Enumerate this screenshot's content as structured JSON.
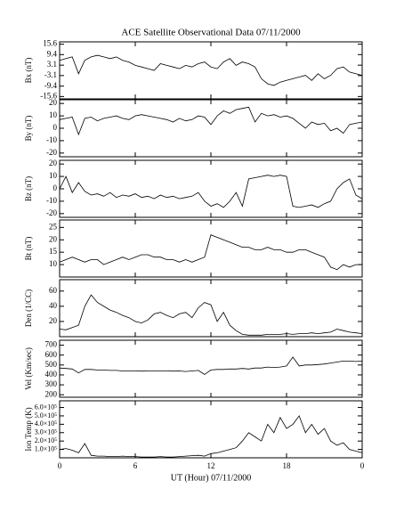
{
  "chart_data": [
    {
      "type": "line",
      "title": "ACE Satellite Observational Data   07/11/2000",
      "ylabel": "Bx (nT)",
      "color": "#000000",
      "x": [
        0,
        0.5,
        1,
        1.5,
        2,
        2.5,
        3,
        3.5,
        4,
        4.5,
        5,
        5.5,
        6,
        6.5,
        7,
        7.5,
        8,
        8.5,
        9,
        9.5,
        10,
        10.5,
        11,
        11.5,
        12,
        12.5,
        13,
        13.5,
        14,
        14.5,
        15,
        15.5,
        16,
        16.5,
        17,
        17.5,
        18,
        18.5,
        19,
        19.5,
        20,
        20.5,
        21,
        21.5,
        22,
        22.5,
        23,
        23.5,
        24
      ],
      "values": [
        6,
        7,
        8,
        -2,
        6,
        8,
        9,
        8,
        7,
        8,
        6,
        5,
        3,
        2,
        1,
        0,
        4,
        3,
        2,
        1,
        3,
        2,
        4,
        5,
        2,
        1,
        5,
        7,
        3,
        5,
        4,
        2,
        -5,
        -8,
        -9,
        -7,
        -6,
        -5,
        -4,
        -3,
        -6,
        -2,
        -5,
        -3,
        1,
        2,
        -1,
        -2,
        -3
      ],
      "xlim": [
        0,
        24
      ],
      "ylim": [
        -17,
        17
      ],
      "yticks": [
        15.6,
        9.4,
        3.1,
        -3.1,
        -9.4,
        -15.6
      ]
    },
    {
      "type": "line",
      "ylabel": "By (nT)",
      "color": "#000000",
      "x": [
        0,
        0.5,
        1,
        1.5,
        2,
        2.5,
        3,
        3.5,
        4,
        4.5,
        5,
        5.5,
        6,
        6.5,
        7,
        7.5,
        8,
        8.5,
        9,
        9.5,
        10,
        10.5,
        11,
        11.5,
        12,
        12.5,
        13,
        13.5,
        14,
        14.5,
        15,
        15.5,
        16,
        16.5,
        17,
        17.5,
        18,
        18.5,
        19,
        19.5,
        20,
        20.5,
        21,
        21.5,
        22,
        22.5,
        23,
        23.5,
        24
      ],
      "values": [
        7,
        8,
        9,
        -5,
        8,
        9,
        6,
        8,
        9,
        10,
        8,
        7,
        10,
        11,
        10,
        9,
        8,
        7,
        5,
        8,
        6,
        7,
        10,
        9,
        3,
        10,
        14,
        12,
        15,
        16,
        17,
        5,
        12,
        10,
        11,
        9,
        10,
        8,
        4,
        0,
        5,
        3,
        4,
        -2,
        0,
        -4,
        3,
        4,
        5
      ],
      "xlim": [
        0,
        24
      ],
      "ylim": [
        -23,
        23
      ],
      "yticks": [
        20,
        10,
        0,
        -10,
        -20
      ]
    },
    {
      "type": "line",
      "ylabel": "Bz (nT)",
      "color": "#000000",
      "x": [
        0,
        0.5,
        1,
        1.5,
        2,
        2.5,
        3,
        3.5,
        4,
        4.5,
        5,
        5.5,
        6,
        6.5,
        7,
        7.5,
        8,
        8.5,
        9,
        9.5,
        10,
        10.5,
        11,
        11.5,
        12,
        12.5,
        13,
        13.5,
        14,
        14.5,
        15,
        15.5,
        16,
        16.5,
        17,
        17.5,
        18,
        18.5,
        19,
        19.5,
        20,
        20.5,
        21,
        21.5,
        22,
        22.5,
        23,
        23.5,
        24
      ],
      "values": [
        0,
        10,
        -3,
        5,
        -2,
        -5,
        -4,
        -6,
        -3,
        -7,
        -5,
        -6,
        -4,
        -7,
        -6,
        -8,
        -5,
        -7,
        -6,
        -8,
        -7,
        -6,
        -3,
        -10,
        -14,
        -12,
        -15,
        -10,
        -3,
        -14,
        8,
        9,
        10,
        11,
        10,
        11,
        10,
        -14,
        -15,
        -14,
        -13,
        -15,
        -12,
        -10,
        0,
        5,
        8,
        -5,
        -8
      ],
      "xlim": [
        0,
        24
      ],
      "ylim": [
        -23,
        23
      ],
      "yticks": [
        20,
        10,
        0,
        -10,
        -20
      ]
    },
    {
      "type": "line",
      "ylabel": "Bt (nT)",
      "color": "#000000",
      "x": [
        0,
        0.5,
        1,
        1.5,
        2,
        2.5,
        3,
        3.5,
        4,
        4.5,
        5,
        5.5,
        6,
        6.5,
        7,
        7.5,
        8,
        8.5,
        9,
        9.5,
        10,
        10.5,
        11,
        11.5,
        12,
        12.5,
        13,
        13.5,
        14,
        14.5,
        15,
        15.5,
        16,
        16.5,
        17,
        17.5,
        18,
        18.5,
        19,
        19.5,
        20,
        20.5,
        21,
        21.5,
        22,
        22.5,
        23,
        23.5,
        24
      ],
      "values": [
        11,
        12,
        13,
        12,
        11,
        12,
        12,
        10,
        11,
        12,
        13,
        12,
        13,
        14,
        14,
        13,
        13,
        12,
        12,
        11,
        12,
        11,
        12,
        13,
        22,
        21,
        20,
        19,
        18,
        17,
        17,
        16,
        16,
        17,
        16,
        16,
        15,
        15,
        16,
        16,
        15,
        14,
        13,
        9,
        8,
        10,
        9,
        10,
        10
      ],
      "xlim": [
        0,
        24
      ],
      "ylim": [
        5,
        28
      ],
      "yticks": [
        25,
        20,
        15,
        10
      ]
    },
    {
      "type": "line",
      "ylabel": "Den (1/CC)",
      "color": "#000000",
      "x": [
        0,
        0.5,
        1,
        1.5,
        2,
        2.5,
        3,
        3.5,
        4,
        4.5,
        5,
        5.5,
        6,
        6.5,
        7,
        7.5,
        8,
        8.5,
        9,
        9.5,
        10,
        10.5,
        11,
        11.5,
        12,
        12.5,
        13,
        13.5,
        14,
        14.5,
        15,
        15.5,
        16,
        16.5,
        17,
        17.5,
        18,
        18.5,
        19,
        19.5,
        20,
        20.5,
        21,
        21.5,
        22,
        22.5,
        23,
        23.5,
        24
      ],
      "values": [
        10,
        9,
        12,
        15,
        40,
        55,
        45,
        40,
        35,
        32,
        28,
        25,
        20,
        18,
        22,
        30,
        32,
        28,
        25,
        30,
        32,
        25,
        38,
        45,
        42,
        20,
        32,
        15,
        8,
        3,
        2,
        2,
        2,
        3,
        3,
        3,
        4,
        3,
        4,
        4,
        5,
        4,
        5,
        6,
        10,
        8,
        6,
        5,
        4
      ],
      "xlim": [
        0,
        24
      ],
      "ylim": [
        0,
        75
      ],
      "yticks": [
        60,
        40,
        20
      ]
    },
    {
      "type": "line",
      "ylabel": "Vel (Km/sec)",
      "color": "#000000",
      "x": [
        0,
        0.5,
        1,
        1.5,
        2,
        2.5,
        3,
        3.5,
        4,
        4.5,
        5,
        5.5,
        6,
        6.5,
        7,
        7.5,
        8,
        8.5,
        9,
        9.5,
        10,
        10.5,
        11,
        11.5,
        12,
        12.5,
        13,
        13.5,
        14,
        14.5,
        15,
        15.5,
        16,
        16.5,
        17,
        17.5,
        18,
        18.5,
        19,
        19.5,
        20,
        20.5,
        21,
        21.5,
        22,
        22.5,
        23,
        23.5,
        24
      ],
      "values": [
        470,
        465,
        460,
        420,
        455,
        455,
        450,
        450,
        445,
        445,
        440,
        440,
        440,
        438,
        440,
        440,
        440,
        440,
        438,
        440,
        435,
        440,
        445,
        405,
        450,
        455,
        455,
        460,
        460,
        465,
        460,
        470,
        470,
        480,
        475,
        480,
        490,
        580,
        490,
        500,
        500,
        505,
        510,
        520,
        530,
        540,
        540,
        535,
        540
      ],
      "xlim": [
        0,
        24
      ],
      "ylim": [
        175,
        750
      ],
      "yticks": [
        700,
        600,
        500,
        400,
        300,
        200
      ]
    },
    {
      "type": "line",
      "ylabel": "Ion Temp (K)",
      "xlabel": "UT (Hour)  07/11/2000",
      "color": "#000000",
      "x": [
        0,
        0.5,
        1,
        1.5,
        2,
        2.5,
        3,
        3.5,
        4,
        4.5,
        5,
        5.5,
        6,
        6.5,
        7,
        7.5,
        8,
        8.5,
        9,
        9.5,
        10,
        10.5,
        11,
        11.5,
        12,
        12.5,
        13,
        13.5,
        14,
        14.5,
        15,
        15.5,
        16,
        16.5,
        17,
        17.5,
        18,
        18.5,
        19,
        19.5,
        20,
        20.5,
        21,
        21.5,
        22,
        22.5,
        23,
        23.5,
        24
      ],
      "values": [
        100000,
        110000,
        90000,
        60000,
        170000,
        30000,
        20000,
        20000,
        15000,
        15000,
        20000,
        15000,
        15000,
        10000,
        10000,
        10000,
        15000,
        10000,
        10000,
        15000,
        20000,
        25000,
        30000,
        20000,
        50000,
        60000,
        80000,
        100000,
        120000,
        200000,
        300000,
        250000,
        200000,
        400000,
        300000,
        480000,
        350000,
        400000,
        500000,
        300000,
        400000,
        280000,
        350000,
        200000,
        150000,
        180000,
        100000,
        80000,
        60000
      ],
      "xlim": [
        0,
        24
      ],
      "ylim": [
        0,
        680000
      ],
      "yticks": [
        {
          "value": 600000,
          "label": "6.0×10⁵"
        },
        {
          "value": 500000,
          "label": "5.0×10⁵"
        },
        {
          "value": 400000,
          "label": "4.0×10⁵"
        },
        {
          "value": 300000,
          "label": "3.0×10⁵"
        },
        {
          "value": 200000,
          "label": "2.0×10⁵"
        },
        {
          "value": 100000,
          "label": "1.0×10⁵"
        }
      ],
      "xticks": [
        0,
        6,
        12,
        18,
        {
          "value": 24,
          "label": "0"
        }
      ]
    }
  ]
}
